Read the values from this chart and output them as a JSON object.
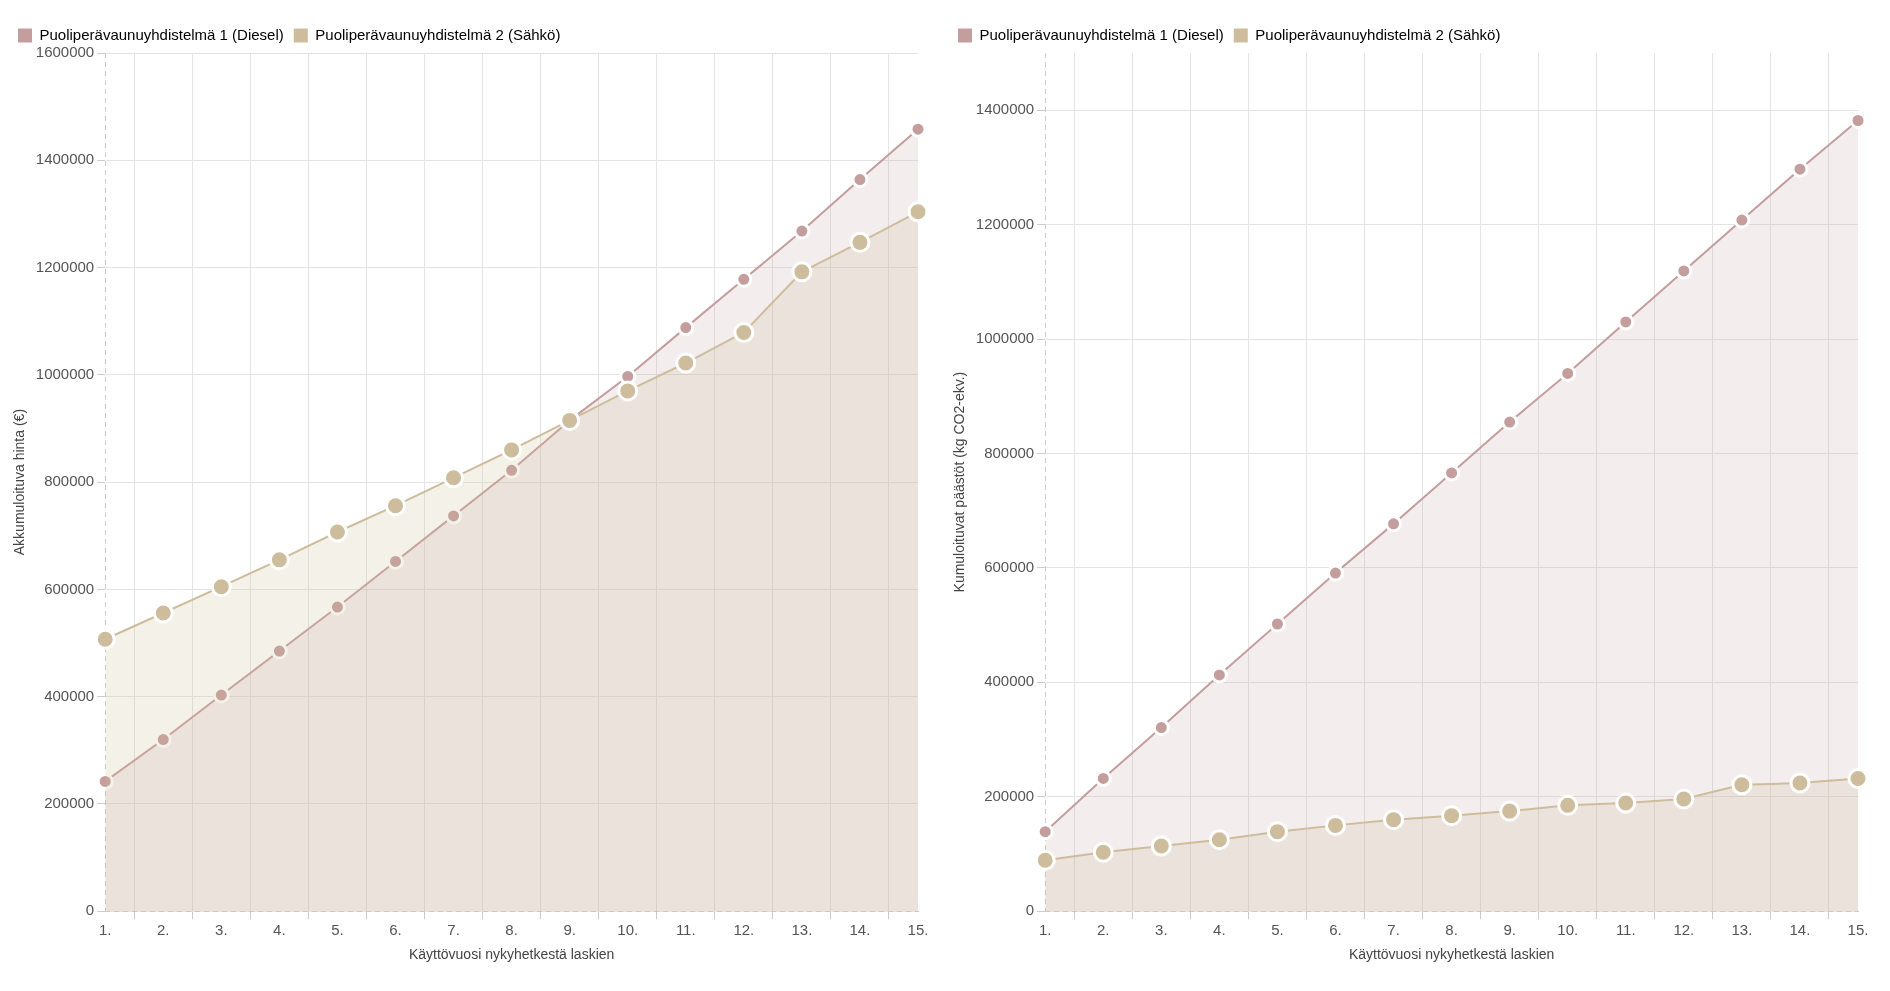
{
  "chart_data": [
    {
      "type": "area",
      "xlabel": "Käyttövuosi nykyhetkestä laskien",
      "ylabel": "Akkumuloituva hinta (€)",
      "categories": [
        "1.",
        "2.",
        "3.",
        "4.",
        "5.",
        "6.",
        "7.",
        "8.",
        "9.",
        "10.",
        "11.",
        "12.",
        "13.",
        "14.",
        "15."
      ],
      "series": [
        {
          "name": "Puoliperävaunuyhdistelmä 1 (Diesel)",
          "color": "#c49d9d",
          "values": [
            242000,
            320000,
            403000,
            485000,
            567000,
            652000,
            737000,
            822000,
            915000,
            997000,
            1088000,
            1178000,
            1268000,
            1364000,
            1458000
          ]
        },
        {
          "name": "Puoliperävaunuyhdistelmä 2 (Sähkö)",
          "color": "#cdbd9c",
          "values": [
            507000,
            556000,
            605000,
            655000,
            707000,
            756000,
            808000,
            860000,
            915000,
            970000,
            1022000,
            1079000,
            1192000,
            1247000,
            1304000
          ]
        }
      ],
      "ylim": [
        0,
        1600000
      ],
      "yticks": [
        0,
        200000,
        400000,
        600000,
        800000,
        1000000,
        1200000,
        1400000,
        1600000
      ],
      "grid": true,
      "legend": "top left",
      "marker": "circle"
    },
    {
      "type": "area",
      "xlabel": "Käyttövuosi nykyhetkestä laskien",
      "ylabel": "Kumuloituvat päästöt (kg CO2-ekv.)",
      "categories": [
        "1.",
        "2.",
        "3.",
        "4.",
        "5.",
        "6.",
        "7.",
        "8.",
        "9.",
        "10.",
        "11.",
        "12.",
        "13.",
        "14.",
        "15."
      ],
      "series": [
        {
          "name": "Puoliperävaunuyhdistelmä 1 (Diesel)",
          "color": "#c49d9d",
          "values": [
            139000,
            232000,
            321000,
            413000,
            502000,
            591000,
            677000,
            766000,
            855000,
            940000,
            1030000,
            1119000,
            1208000,
            1297000,
            1382000
          ]
        },
        {
          "name": "Puoliperävaunuyhdistelmä 2 (Sähkö)",
          "color": "#cdbd9c",
          "values": [
            89000,
            103000,
            114000,
            125000,
            139000,
            150000,
            160000,
            167000,
            175000,
            185000,
            189000,
            196000,
            221000,
            224000,
            232000
          ]
        }
      ],
      "ylim": [
        0,
        1500000
      ],
      "yticks": [
        0,
        200000,
        400000,
        600000,
        800000,
        1000000,
        1200000,
        1400000
      ],
      "grid": true,
      "legend": "top left",
      "marker": "circle"
    }
  ]
}
